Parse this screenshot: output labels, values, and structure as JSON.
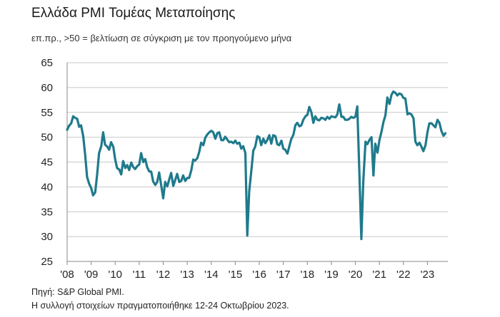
{
  "header": {
    "title": "Ελλάδα PMI Τομέας Μεταποίησης",
    "subtitle": "επ.πρ., >50 = βελτίωση σε σύγκριση με τον προηγούμενο μήνα"
  },
  "footer": {
    "source": "Πηγή: S&P Global PMI.",
    "note": "Η συλλογή στοιχείων πραγματοποιήθηκε 12-24 Οκτωβρίου 2023."
  },
  "colors": {
    "line": "#1f7a8c",
    "grid": "#c8c8c8",
    "axis": "#888888"
  },
  "chart_data": {
    "type": "line",
    "title": "Ελλάδα PMI Τομέας Μεταποίησης",
    "subtitle": "επ.πρ., >50 = βελτίωση σε σύγκριση με τον προηγούμενο μήνα",
    "xlabel": "",
    "ylabel": "",
    "ylim": [
      25,
      65
    ],
    "yticks": [
      25,
      30,
      35,
      40,
      45,
      50,
      55,
      60,
      65
    ],
    "xlim": [
      2008.0,
      2023.85
    ],
    "xticks": [
      "'08",
      "'09",
      "'10",
      "'11",
      "'12",
      "'13",
      "'14",
      "'15",
      "'16",
      "'17",
      "'18",
      "'19",
      "'20",
      "'21",
      "'22",
      "'23"
    ],
    "grid": "horizontal",
    "legend": "none",
    "series": [
      {
        "name": "",
        "x": [
          2008.0,
          2008.08,
          2008.17,
          2008.25,
          2008.33,
          2008.42,
          2008.5,
          2008.58,
          2008.67,
          2008.75,
          2008.83,
          2008.92,
          2009.0,
          2009.08,
          2009.17,
          2009.25,
          2009.33,
          2009.42,
          2009.5,
          2009.58,
          2009.67,
          2009.75,
          2009.83,
          2009.92,
          2010.0,
          2010.08,
          2010.17,
          2010.25,
          2010.33,
          2010.42,
          2010.5,
          2010.58,
          2010.67,
          2010.75,
          2010.83,
          2010.92,
          2011.0,
          2011.08,
          2011.17,
          2011.25,
          2011.33,
          2011.42,
          2011.5,
          2011.58,
          2011.67,
          2011.75,
          2011.83,
          2011.92,
          2012.0,
          2012.08,
          2012.17,
          2012.25,
          2012.33,
          2012.42,
          2012.5,
          2012.58,
          2012.67,
          2012.75,
          2012.83,
          2012.92,
          2013.0,
          2013.08,
          2013.17,
          2013.25,
          2013.33,
          2013.42,
          2013.5,
          2013.58,
          2013.67,
          2013.75,
          2013.83,
          2013.92,
          2014.0,
          2014.08,
          2014.17,
          2014.25,
          2014.33,
          2014.42,
          2014.5,
          2014.58,
          2014.67,
          2014.75,
          2014.83,
          2014.92,
          2015.0,
          2015.08,
          2015.17,
          2015.25,
          2015.33,
          2015.42,
          2015.5,
          2015.58,
          2015.67,
          2015.75,
          2015.83,
          2015.92,
          2016.0,
          2016.08,
          2016.17,
          2016.25,
          2016.33,
          2016.42,
          2016.5,
          2016.58,
          2016.67,
          2016.75,
          2016.83,
          2016.92,
          2017.0,
          2017.08,
          2017.17,
          2017.25,
          2017.33,
          2017.42,
          2017.5,
          2017.58,
          2017.67,
          2017.75,
          2017.83,
          2017.92,
          2018.0,
          2018.08,
          2018.17,
          2018.25,
          2018.33,
          2018.42,
          2018.5,
          2018.58,
          2018.67,
          2018.75,
          2018.83,
          2018.92,
          2019.0,
          2019.08,
          2019.17,
          2019.25,
          2019.33,
          2019.42,
          2019.5,
          2019.58,
          2019.67,
          2019.75,
          2019.83,
          2019.92,
          2020.0,
          2020.08,
          2020.17,
          2020.25,
          2020.33,
          2020.42,
          2020.5,
          2020.58,
          2020.67,
          2020.75,
          2020.83,
          2020.92,
          2021.0,
          2021.08,
          2021.17,
          2021.25,
          2021.33,
          2021.42,
          2021.5,
          2021.58,
          2021.67,
          2021.75,
          2021.83,
          2021.92,
          2022.0,
          2022.08,
          2022.17,
          2022.25,
          2022.33,
          2022.42,
          2022.5,
          2022.58,
          2022.67,
          2022.75,
          2022.83,
          2022.92,
          2023.0,
          2023.08,
          2023.17,
          2023.25,
          2023.33,
          2023.42,
          2023.5,
          2023.58,
          2023.67,
          2023.75
        ],
        "values": [
          51.5,
          52.3,
          52.8,
          54.2,
          53.9,
          53.7,
          52.1,
          52.4,
          50.2,
          46.5,
          42.0,
          40.6,
          39.8,
          38.3,
          38.9,
          42.5,
          46.8,
          48.2,
          51.0,
          48.5,
          48.1,
          47.5,
          49.0,
          48.1,
          45.5,
          43.8,
          43.5,
          42.5,
          45.2,
          43.8,
          44.4,
          43.4,
          44.9,
          44.0,
          43.6,
          44.2,
          44.5,
          46.8,
          45.0,
          45.6,
          44.0,
          43.1,
          43.1,
          41.1,
          40.4,
          41.0,
          42.9,
          40.2,
          37.7,
          41.0,
          40.1,
          41.5,
          42.8,
          40.2,
          41.4,
          42.6,
          41.0,
          41.2,
          42.3,
          41.2,
          41.8,
          41.8,
          43.4,
          45.5,
          45.3,
          45.8,
          47.1,
          48.9,
          48.4,
          49.9,
          50.5,
          51.0,
          51.3,
          51.0,
          49.7,
          50.8,
          51.0,
          49.4,
          49.4,
          50.1,
          49.5,
          49.0,
          49.1,
          48.8,
          49.3,
          48.7,
          48.9,
          47.7,
          48.2,
          46.8,
          30.2,
          39.1,
          43.3,
          47.3,
          48.1,
          50.2,
          50.0,
          48.4,
          49.7,
          48.8,
          49.4,
          50.4,
          48.7,
          50.4,
          50.2,
          48.6,
          48.4,
          49.3,
          47.7,
          47.5,
          46.7,
          48.2,
          49.6,
          50.5,
          52.4,
          52.9,
          52.2,
          52.4,
          53.5,
          54.2,
          54.5,
          56.1,
          55.0,
          52.9,
          54.2,
          53.5,
          53.4,
          53.9,
          53.8,
          53.5,
          54.1,
          53.7,
          54.2,
          54.1,
          54.0,
          54.6,
          56.6,
          54.1,
          54.1,
          53.5,
          53.5,
          53.7,
          54.1,
          53.9,
          54.1,
          56.2,
          42.5,
          29.5,
          41.1,
          49.1,
          48.6,
          49.4,
          50.0,
          42.3,
          48.7,
          46.9,
          49.4,
          51.0,
          53.1,
          54.4,
          58.0,
          56.7,
          58.5,
          59.2,
          58.9,
          58.4,
          58.8,
          58.6,
          57.9,
          57.8,
          54.6,
          54.8,
          54.6,
          53.8,
          49.1,
          48.4,
          48.9,
          48.1,
          47.2,
          48.4,
          51.0,
          52.8,
          52.8,
          52.4,
          52.0,
          53.5,
          52.9,
          51.3,
          50.3,
          50.8
        ]
      }
    ]
  }
}
